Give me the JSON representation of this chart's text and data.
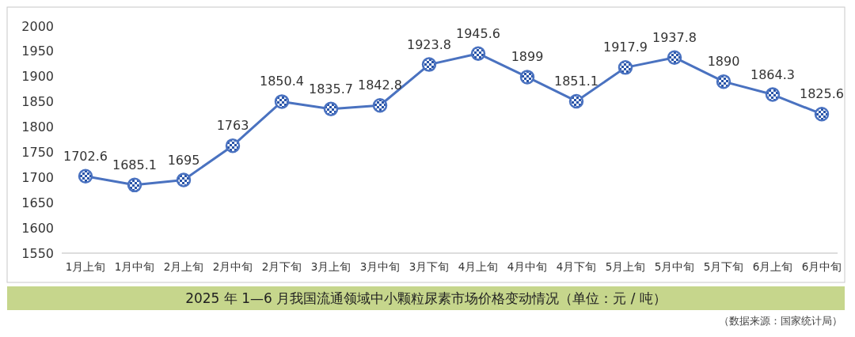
{
  "chart_data": {
    "type": "line",
    "title": "2025 年 1—6 月我国流通领域中小颗粒尿素市场价格变动情况（单位：元 / 吨）",
    "annotations": [
      "（数据来源：国家统计局）"
    ],
    "categories": [
      "1月上旬",
      "1月中旬",
      "2月上旬",
      "2月中旬",
      "2月下旬",
      "3月上旬",
      "3月中旬",
      "3月下旬",
      "4月上旬",
      "4月中旬",
      "4月下旬",
      "5月上旬",
      "5月中旬",
      "5月下旬",
      "6月上旬",
      "6月中旬"
    ],
    "series": [
      {
        "color": "#4a72c0",
        "values": [
          1702.6,
          1685.1,
          1695,
          1763,
          1850.4,
          1835.7,
          1842.8,
          1923.8,
          1945.6,
          1899,
          1851.1,
          1917.9,
          1937.8,
          1890,
          1864.3,
          1825.6
        ]
      }
    ],
    "ylim": [
      1550,
      2000
    ],
    "yticks": [
      1550,
      1600,
      1650,
      1700,
      1750,
      1800,
      1850,
      1900,
      1950,
      2000
    ],
    "grid": false,
    "marker": "circle",
    "line_style": "solid",
    "data_labels": true
  }
}
